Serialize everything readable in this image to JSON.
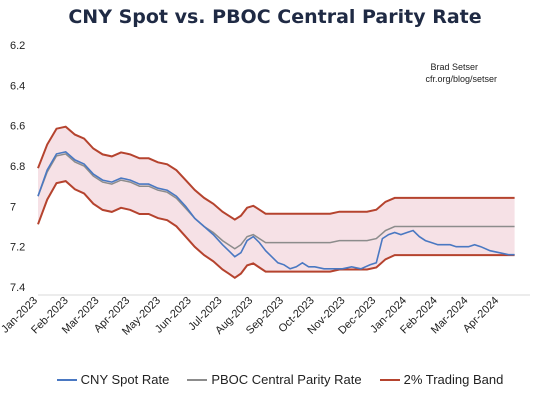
{
  "chart_data": {
    "type": "line",
    "title": "CNY Spot vs. PBOC Central Parity Rate",
    "source": [
      "Brad Setser",
      "cfr.org/blog/setser"
    ],
    "ylim": [
      6.2,
      7.4
    ],
    "y_inverted": true,
    "y_ticks": [
      "6.2",
      "6.4",
      "6.6",
      "6.8",
      "7",
      "7.2",
      "7.4"
    ],
    "x_range": [
      0,
      16
    ],
    "x_ticks": [
      "Jan-2023",
      "Feb-2023",
      "Mar-2023",
      "Apr-2023",
      "May-2023",
      "Jun-2023",
      "Jul-2023",
      "Aug-2023",
      "Sep-2023",
      "Oct-2023",
      "Nov-2023",
      "Dec-2023",
      "Jan-2024",
      "Feb-2024",
      "Mar-2024",
      "Apr-2024"
    ],
    "grid": false,
    "legend_position": "bottom",
    "series": [
      {
        "name": "CNY Spot Rate",
        "color": "#4a78c2",
        "points": [
          [
            0,
            6.95
          ],
          [
            0.3,
            6.82
          ],
          [
            0.6,
            6.74
          ],
          [
            0.9,
            6.73
          ],
          [
            1.2,
            6.77
          ],
          [
            1.5,
            6.79
          ],
          [
            1.8,
            6.84
          ],
          [
            2.1,
            6.87
          ],
          [
            2.4,
            6.88
          ],
          [
            2.7,
            6.86
          ],
          [
            3.0,
            6.87
          ],
          [
            3.3,
            6.89
          ],
          [
            3.6,
            6.89
          ],
          [
            3.9,
            6.91
          ],
          [
            4.2,
            6.92
          ],
          [
            4.5,
            6.95
          ],
          [
            4.8,
            7.0
          ],
          [
            5.1,
            7.06
          ],
          [
            5.4,
            7.1
          ],
          [
            5.7,
            7.14
          ],
          [
            6.0,
            7.19
          ],
          [
            6.2,
            7.22
          ],
          [
            6.4,
            7.25
          ],
          [
            6.6,
            7.23
          ],
          [
            6.8,
            7.17
          ],
          [
            7.0,
            7.15
          ],
          [
            7.2,
            7.18
          ],
          [
            7.4,
            7.22
          ],
          [
            7.6,
            7.25
          ],
          [
            7.8,
            7.28
          ],
          [
            8.0,
            7.29
          ],
          [
            8.2,
            7.31
          ],
          [
            8.4,
            7.3
          ],
          [
            8.6,
            7.28
          ],
          [
            8.8,
            7.3
          ],
          [
            9.0,
            7.3
          ],
          [
            9.3,
            7.31
          ],
          [
            9.6,
            7.31
          ],
          [
            9.9,
            7.31
          ],
          [
            10.2,
            7.3
          ],
          [
            10.5,
            7.31
          ],
          [
            10.8,
            7.29
          ],
          [
            11.0,
            7.28
          ],
          [
            11.2,
            7.16
          ],
          [
            11.4,
            7.14
          ],
          [
            11.6,
            7.13
          ],
          [
            11.8,
            7.14
          ],
          [
            12.0,
            7.13
          ],
          [
            12.2,
            7.12
          ],
          [
            12.4,
            7.15
          ],
          [
            12.6,
            7.17
          ],
          [
            12.8,
            7.18
          ],
          [
            13.0,
            7.19
          ],
          [
            13.2,
            7.19
          ],
          [
            13.4,
            7.19
          ],
          [
            13.6,
            7.2
          ],
          [
            13.8,
            7.2
          ],
          [
            14.0,
            7.2
          ],
          [
            14.2,
            7.19
          ],
          [
            14.4,
            7.2
          ],
          [
            14.7,
            7.22
          ],
          [
            15.0,
            7.23
          ],
          [
            15.3,
            7.24
          ],
          [
            15.5,
            7.24
          ]
        ]
      },
      {
        "name": "PBOC Central Parity Rate",
        "color": "#8c8c8c",
        "points": [
          [
            0,
            6.95
          ],
          [
            0.3,
            6.83
          ],
          [
            0.6,
            6.75
          ],
          [
            0.9,
            6.74
          ],
          [
            1.2,
            6.78
          ],
          [
            1.5,
            6.8
          ],
          [
            1.8,
            6.85
          ],
          [
            2.1,
            6.88
          ],
          [
            2.4,
            6.89
          ],
          [
            2.7,
            6.87
          ],
          [
            3.0,
            6.88
          ],
          [
            3.3,
            6.9
          ],
          [
            3.6,
            6.9
          ],
          [
            3.9,
            6.92
          ],
          [
            4.2,
            6.93
          ],
          [
            4.5,
            6.96
          ],
          [
            4.8,
            7.01
          ],
          [
            5.1,
            7.06
          ],
          [
            5.4,
            7.1
          ],
          [
            5.7,
            7.13
          ],
          [
            6.0,
            7.17
          ],
          [
            6.2,
            7.19
          ],
          [
            6.4,
            7.21
          ],
          [
            6.6,
            7.19
          ],
          [
            6.8,
            7.15
          ],
          [
            7.0,
            7.14
          ],
          [
            7.2,
            7.16
          ],
          [
            7.4,
            7.18
          ],
          [
            7.6,
            7.18
          ],
          [
            7.8,
            7.18
          ],
          [
            8.0,
            7.18
          ],
          [
            8.3,
            7.18
          ],
          [
            8.6,
            7.18
          ],
          [
            8.9,
            7.18
          ],
          [
            9.2,
            7.18
          ],
          [
            9.5,
            7.18
          ],
          [
            9.8,
            7.17
          ],
          [
            10.1,
            7.17
          ],
          [
            10.4,
            7.17
          ],
          [
            10.7,
            7.17
          ],
          [
            11.0,
            7.16
          ],
          [
            11.3,
            7.12
          ],
          [
            11.6,
            7.1
          ],
          [
            11.9,
            7.1
          ],
          [
            12.2,
            7.1
          ],
          [
            12.5,
            7.1
          ],
          [
            12.8,
            7.1
          ],
          [
            13.1,
            7.1
          ],
          [
            13.4,
            7.1
          ],
          [
            13.7,
            7.1
          ],
          [
            14.0,
            7.1
          ],
          [
            14.3,
            7.1
          ],
          [
            14.6,
            7.1
          ],
          [
            14.9,
            7.1
          ],
          [
            15.2,
            7.1
          ],
          [
            15.5,
            7.1
          ]
        ]
      },
      {
        "name": "2% Trading Band",
        "color": "#b5432e",
        "fill": "#f6e1e6",
        "note": "upper and lower bounds at +/- 2% of the central parity rate"
      }
    ]
  }
}
